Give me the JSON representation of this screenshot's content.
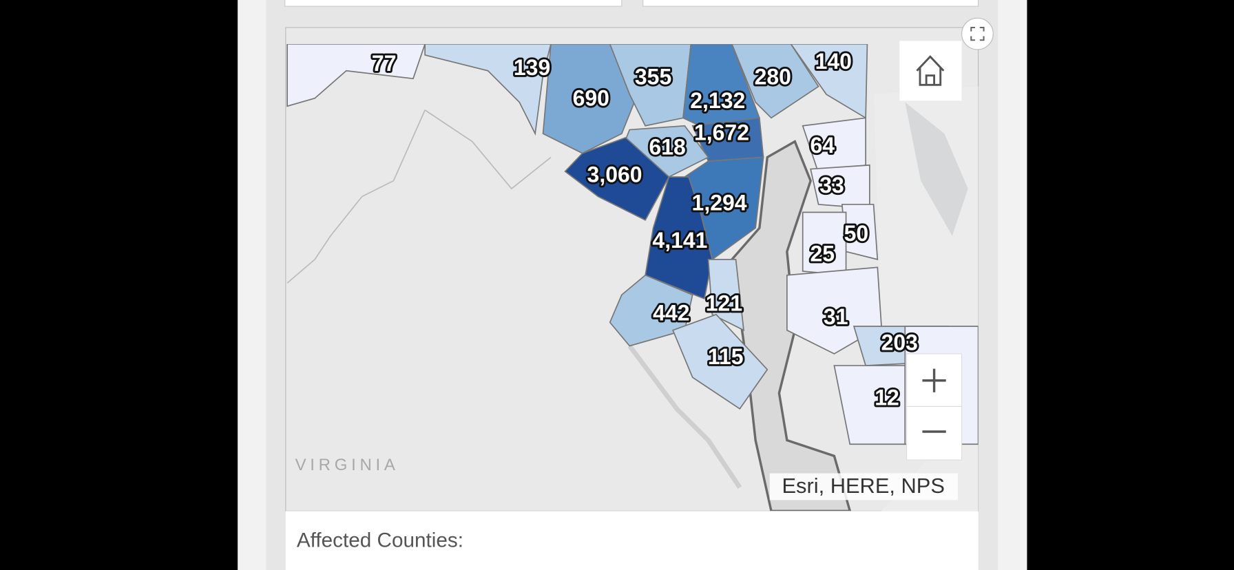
{
  "map": {
    "county_labels": [
      "77",
      "139",
      "690",
      "355",
      "2,132",
      "280",
      "140",
      "1,672",
      "618",
      "64",
      "3,060",
      "33",
      "1,294",
      "50",
      "4,141",
      "25",
      "121",
      "442",
      "31",
      "203",
      "115",
      "12"
    ],
    "region_label": "VIRGINIA",
    "attribution": "Esri, HERE, NPS"
  },
  "footer": {
    "text": "Affected Counties:"
  }
}
